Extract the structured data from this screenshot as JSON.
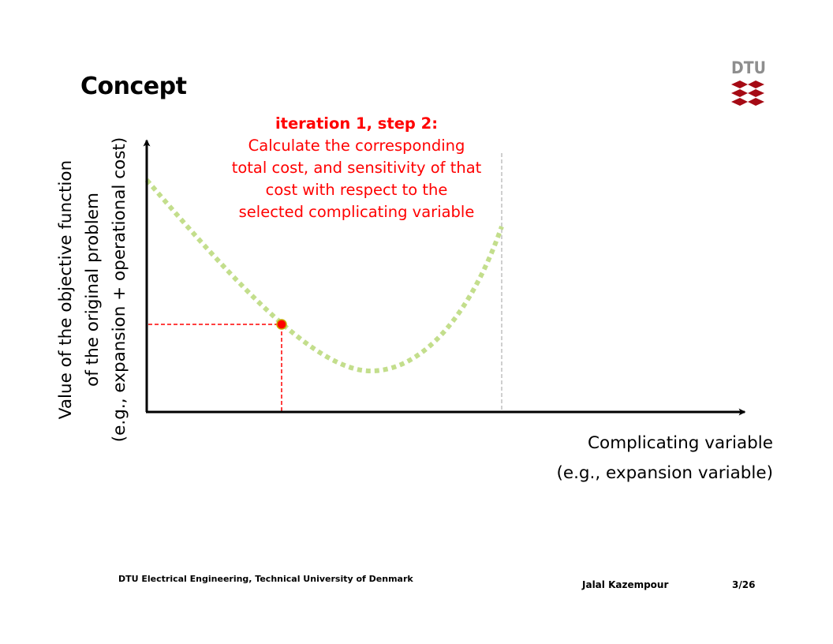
{
  "slide": {
    "title": "Concept",
    "logo_text": "DTU"
  },
  "annotation": {
    "heading": "iteration 1, step 2:",
    "lines": [
      "Calculate the corresponding",
      "total cost, and sensitivity of that",
      "cost with respect to the",
      "selected complicating variable"
    ],
    "color": "#ff0000"
  },
  "axes": {
    "y_label_lines": [
      "Value of the objective function",
      "of the original problem",
      "(e.g., expansion + operational cost)"
    ],
    "x_label_lines": [
      "Complicating variable",
      "(e.g., expansion variable)"
    ]
  },
  "colors": {
    "curve": "#c3de8c",
    "highlight": "#ff0000",
    "boundary_line": "#bfbfbf",
    "logo_red": "#a50a14",
    "logo_gray": "#8e8e8e"
  },
  "footer": {
    "institution": "DTU Electrical Engineering, Technical University of Denmark",
    "author": "Jalal Kazempour",
    "page": "3/26"
  }
}
